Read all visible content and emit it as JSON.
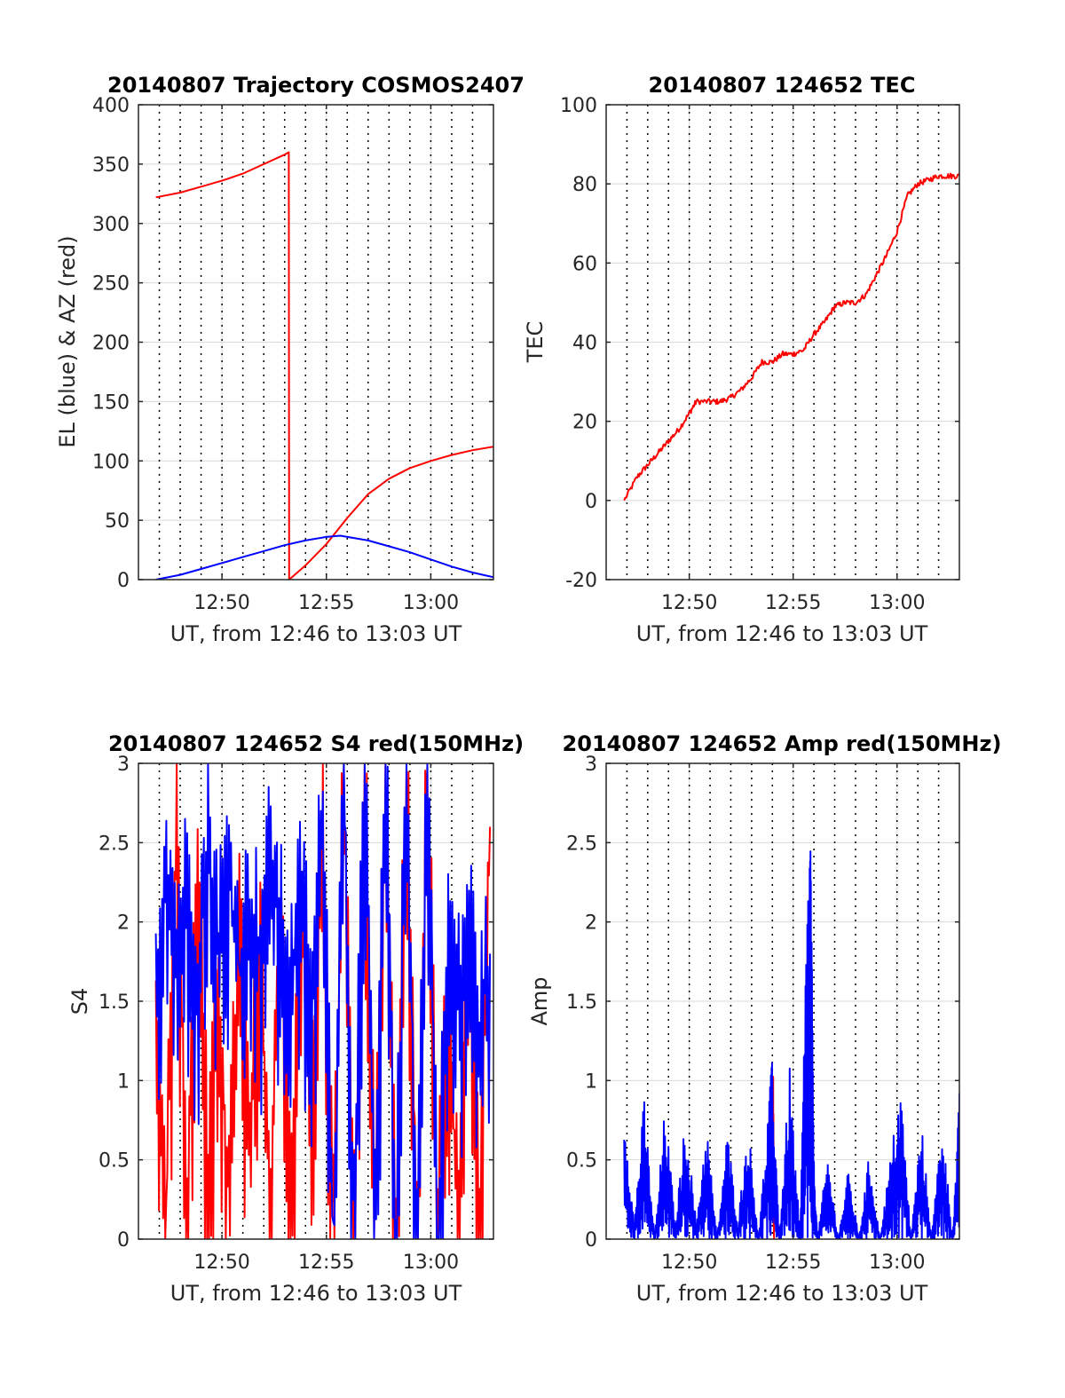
{
  "figure": {
    "date": "20140807",
    "colors": {
      "red": "#ff0000",
      "blue": "#0000ff",
      "grid": "#d9d9d9",
      "axis": "#262626"
    }
  },
  "chart_data": [
    {
      "id": "trajectory",
      "type": "line",
      "title": "20140807 Trajectory COSMOS2407",
      "xlabel": "UT, from 12:46 to 13:03 UT",
      "ylabel": "EL (blue) & AZ (red)",
      "xlim": [
        "12:46",
        "13:03"
      ],
      "ylim": [
        0,
        400
      ],
      "xticks": [
        "12:50",
        "12:55",
        "13:00"
      ],
      "yticks": [
        0,
        50,
        100,
        150,
        200,
        250,
        300,
        350,
        400
      ],
      "grid": true,
      "series": [
        {
          "color": "#ff0000",
          "x": [
            "12:46:50",
            "12:48:00",
            "12:49:00",
            "12:50:00",
            "12:51:00",
            "12:52:00",
            "12:53:00",
            "12:53:12",
            "12:53:13",
            "12:54:00",
            "12:55:00",
            "12:56:00",
            "12:57:00",
            "12:58:00",
            "12:59:00",
            "13:00:00",
            "13:01:00",
            "13:02:00",
            "13:03:00"
          ],
          "values": [
            322,
            326,
            331,
            336,
            342,
            350,
            358,
            360,
            0,
            12,
            30,
            52,
            72,
            85,
            94,
            100,
            105,
            109,
            112
          ]
        },
        {
          "color": "#0000ff",
          "x": [
            "12:46:50",
            "12:48:00",
            "12:49:00",
            "12:50:00",
            "12:51:00",
            "12:52:00",
            "12:53:00",
            "12:54:00",
            "12:55:00",
            "12:55:40",
            "12:56:00",
            "12:57:00",
            "12:58:00",
            "12:59:00",
            "13:00:00",
            "13:01:00",
            "13:02:00",
            "13:03:00"
          ],
          "values": [
            0,
            4,
            9,
            14,
            19,
            24,
            29,
            33,
            36,
            37,
            36,
            33,
            28,
            23,
            17,
            11,
            6,
            2
          ]
        }
      ]
    },
    {
      "id": "tec",
      "type": "line",
      "title": "20140807 124652 TEC",
      "xlabel": "UT, from 12:46 to 13:03 UT",
      "ylabel": "TEC",
      "xlim": [
        "12:46",
        "13:03"
      ],
      "ylim": [
        -20,
        100
      ],
      "xticks": [
        "12:50",
        "12:55",
        "13:00"
      ],
      "yticks": [
        -20,
        0,
        20,
        40,
        60,
        80,
        100
      ],
      "grid": true,
      "series": [
        {
          "color": "#ff0000",
          "x": [
            "12:46:52",
            "12:47:30",
            "12:48:00",
            "12:48:30",
            "12:49:00",
            "12:49:30",
            "12:50:00",
            "12:50:20",
            "12:51:00",
            "12:51:30",
            "12:52:00",
            "12:52:30",
            "12:53:00",
            "12:53:30",
            "12:54:00",
            "12:54:30",
            "12:55:00",
            "12:55:30",
            "12:56:00",
            "12:56:30",
            "12:57:00",
            "12:57:30",
            "12:58:00",
            "12:58:30",
            "12:59:00",
            "12:59:30",
            "13:00:00",
            "13:00:30",
            "13:01:00",
            "13:01:30",
            "13:02:00",
            "13:02:30",
            "13:03:00"
          ],
          "values": [
            0,
            6,
            9,
            12,
            15,
            18,
            22,
            25,
            25,
            25,
            26,
            28,
            31,
            35,
            35,
            37,
            37,
            38,
            42,
            45,
            49,
            50,
            50,
            52,
            57,
            62,
            68,
            77,
            80,
            81,
            82,
            82,
            82
          ]
        }
      ]
    },
    {
      "id": "s4",
      "type": "line",
      "title": "20140807 124652 S4 red(150MHz)",
      "xlabel": "UT, from 12:46 to 13:03 UT",
      "ylabel": "S4",
      "xlim": [
        "12:46",
        "13:03"
      ],
      "ylim": [
        0,
        3
      ],
      "xticks": [
        "12:50",
        "12:55",
        "13:00"
      ],
      "yticks": [
        0,
        0.5,
        1,
        1.5,
        2,
        2.5,
        3
      ],
      "grid": true,
      "series": [
        {
          "color": "#ff0000",
          "x": [
            "12:46:50",
            "12:47:20",
            "12:47:50",
            "12:48:20",
            "12:48:50",
            "12:49:20",
            "12:49:50",
            "12:50:20",
            "12:50:50",
            "12:51:20",
            "12:51:50",
            "12:52:20",
            "12:52:50",
            "12:53:20",
            "12:53:50",
            "12:54:20",
            "12:54:50",
            "12:55:20",
            "12:55:50",
            "12:56:20",
            "12:56:50",
            "12:57:20",
            "12:57:50",
            "12:58:20",
            "12:58:50",
            "12:59:20",
            "12:59:50",
            "13:00:20",
            "13:00:50",
            "13:01:20",
            "13:01:50",
            "13:02:20",
            "13:02:50"
          ],
          "values": [
            1.5,
            0.2,
            2.8,
            0.1,
            2.5,
            0.3,
            1.6,
            0.2,
            2.0,
            0.5,
            1.9,
            0.1,
            2.2,
            0.4,
            1.9,
            1.0,
            2.6,
            0.0,
            3.0,
            0.0,
            3.0,
            0.0,
            3.0,
            0.0,
            3.0,
            0.0,
            3.0,
            0.1,
            1.6,
            0.0,
            2.0,
            0.0,
            2.6
          ]
        },
        {
          "color": "#0000ff",
          "x": [
            "12:46:50",
            "12:47:20",
            "12:47:50",
            "12:48:20",
            "12:48:50",
            "12:49:20",
            "12:49:50",
            "12:50:20",
            "12:50:50",
            "12:51:20",
            "12:51:50",
            "12:52:20",
            "12:52:50",
            "12:53:20",
            "12:53:50",
            "12:54:20",
            "12:54:50",
            "12:55:20",
            "12:55:50",
            "12:56:20",
            "12:56:50",
            "12:57:20",
            "12:57:50",
            "12:58:20",
            "12:58:50",
            "12:59:20",
            "12:59:50",
            "13:00:20",
            "13:00:50",
            "13:01:20",
            "13:01:50",
            "13:02:20",
            "13:02:50"
          ],
          "values": [
            1.6,
            2.4,
            1.8,
            2.2,
            1.7,
            2.5,
            1.9,
            2.3,
            1.7,
            2.1,
            1.8,
            2.4,
            1.9,
            1.6,
            2.2,
            1.4,
            2.8,
            0.0,
            3.0,
            0.0,
            3.0,
            0.0,
            3.0,
            0.0,
            3.0,
            0.0,
            3.0,
            0.0,
            1.9,
            1.5,
            2.0,
            1.3,
            1.8
          ]
        }
      ]
    },
    {
      "id": "amp",
      "type": "line",
      "title": "20140807 124652 Amp red(150MHz)",
      "xlabel": "UT, from 12:46 to 13:03 UT",
      "ylabel": "Amp",
      "xlim": [
        "12:46",
        "13:03"
      ],
      "ylim": [
        0,
        3
      ],
      "xticks": [
        "12:50",
        "12:55",
        "13:00"
      ],
      "yticks": [
        0,
        0.5,
        1,
        1.5,
        2,
        2.5,
        3
      ],
      "grid": true,
      "series": [
        {
          "color": "#ff0000",
          "x": [
            "12:54:02",
            "12:54:05"
          ],
          "values": [
            1.18,
            0.1
          ]
        },
        {
          "color": "#0000ff",
          "x": [
            "12:46:52",
            "12:47:20",
            "12:47:50",
            "12:48:20",
            "12:48:50",
            "12:49:20",
            "12:49:50",
            "12:50:20",
            "12:50:50",
            "12:51:20",
            "12:51:50",
            "12:52:20",
            "12:52:50",
            "12:53:20",
            "12:53:50",
            "12:54:00",
            "12:54:20",
            "12:54:50",
            "12:55:20",
            "12:55:40",
            "12:55:50",
            "12:56:00",
            "12:56:10",
            "12:56:40",
            "12:57:10",
            "12:57:40",
            "12:58:10",
            "12:58:40",
            "12:59:10",
            "12:59:40",
            "13:00:10",
            "13:00:40",
            "13:01:10",
            "13:01:40",
            "13:02:10",
            "13:02:40",
            "13:03:00"
          ],
          "values": [
            0.9,
            0.1,
            0.9,
            0.0,
            0.85,
            0.1,
            0.8,
            0.1,
            0.75,
            0.0,
            0.7,
            0.1,
            0.75,
            0.0,
            0.9,
            1.15,
            0.0,
            1.1,
            0.0,
            2.2,
            2.67,
            0.5,
            0.0,
            0.55,
            0.0,
            0.45,
            0.0,
            0.55,
            0.0,
            0.5,
            1.0,
            0.0,
            0.75,
            0.0,
            0.8,
            0.0,
            0.92
          ]
        }
      ]
    }
  ]
}
